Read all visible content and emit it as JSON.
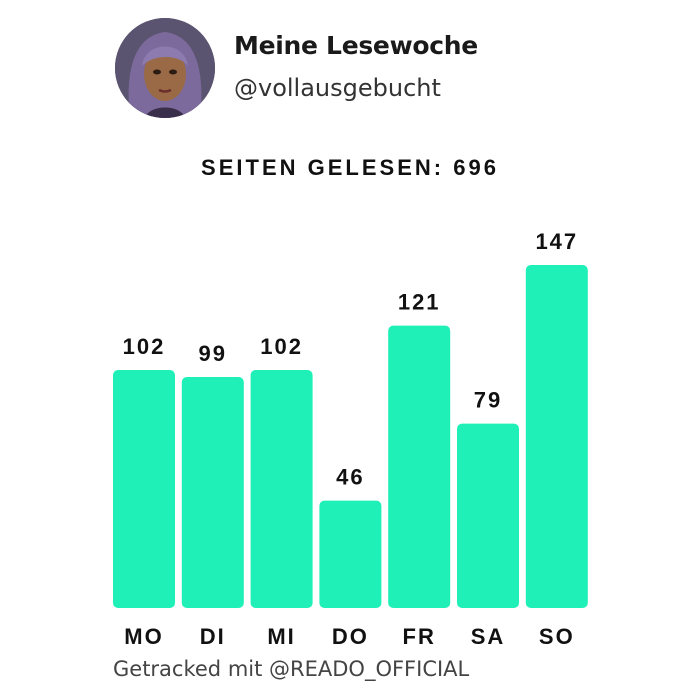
{
  "header": {
    "title": "Meine Lesewoche",
    "handle": "@vollausgebucht"
  },
  "headline": {
    "label": "SEITEN GELESEN:",
    "total": "696"
  },
  "footer": {
    "text": "Getracked mit @READO_OFFICIAL"
  },
  "colors": {
    "bar": "#1ff0b8",
    "text": "#111111",
    "background": "#ffffff"
  },
  "chart_data": {
    "type": "bar",
    "categories": [
      "MO",
      "DI",
      "MI",
      "DO",
      "FR",
      "SA",
      "SO"
    ],
    "values": [
      102,
      99,
      102,
      46,
      121,
      79,
      147
    ],
    "ylim": [
      0,
      147
    ],
    "grid": false
  }
}
